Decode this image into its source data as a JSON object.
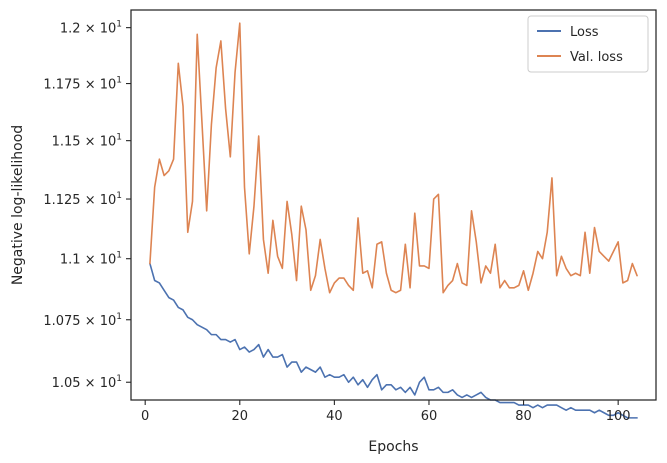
{
  "chart_data": {
    "type": "line",
    "title": "",
    "xlabel": "Epochs",
    "ylabel": "Negative log-likelihood",
    "xlim": [
      -3,
      108
    ],
    "ylim": [
      10.43,
      12.08
    ],
    "yscale": "log",
    "grid": false,
    "legend": "top-right",
    "xticks": [
      0,
      20,
      40,
      60,
      80,
      100
    ],
    "xtick_labels": [
      "0",
      "20",
      "40",
      "60",
      "80",
      "100"
    ],
    "yticks": [
      10.5,
      10.75,
      11.0,
      11.25,
      11.5,
      11.75,
      12.0
    ],
    "ytick_mantissas": [
      "1.05",
      "1.075",
      "1.1",
      "1.125",
      "1.15",
      "1.175",
      "1.2"
    ],
    "ytick_base": "× 10",
    "ytick_exponent": "1",
    "colors": {
      "loss": "#4c72b0",
      "val_loss": "#dd8452",
      "axes": "#262626"
    },
    "series": [
      {
        "name": "Loss",
        "color": "#4c72b0",
        "x": [
          1,
          2,
          3,
          4,
          5,
          6,
          7,
          8,
          9,
          10,
          11,
          12,
          13,
          14,
          15,
          16,
          17,
          18,
          19,
          20,
          21,
          22,
          23,
          24,
          25,
          26,
          27,
          28,
          29,
          30,
          31,
          32,
          33,
          34,
          35,
          36,
          37,
          38,
          39,
          40,
          41,
          42,
          43,
          44,
          45,
          46,
          47,
          48,
          49,
          50,
          51,
          52,
          53,
          54,
          55,
          56,
          57,
          58,
          59,
          60,
          61,
          62,
          63,
          64,
          65,
          66,
          67,
          68,
          69,
          70,
          71,
          72,
          73,
          74,
          75,
          76,
          77,
          78,
          79,
          80,
          81,
          82,
          83,
          84,
          85,
          86,
          87,
          88,
          89,
          90,
          91,
          92,
          93,
          94,
          95,
          96,
          97,
          98,
          99,
          100,
          101,
          102,
          103,
          104
        ],
        "values": [
          10.98,
          10.91,
          10.9,
          10.87,
          10.84,
          10.83,
          10.8,
          10.79,
          10.76,
          10.75,
          10.73,
          10.72,
          10.71,
          10.69,
          10.69,
          10.67,
          10.67,
          10.66,
          10.67,
          10.63,
          10.64,
          10.62,
          10.63,
          10.65,
          10.6,
          10.63,
          10.6,
          10.6,
          10.61,
          10.56,
          10.58,
          10.58,
          10.54,
          10.56,
          10.55,
          10.54,
          10.56,
          10.52,
          10.53,
          10.52,
          10.52,
          10.53,
          10.5,
          10.52,
          10.49,
          10.51,
          10.48,
          10.51,
          10.53,
          10.47,
          10.49,
          10.49,
          10.47,
          10.48,
          10.46,
          10.48,
          10.45,
          10.5,
          10.52,
          10.47,
          10.47,
          10.48,
          10.46,
          10.46,
          10.47,
          10.45,
          10.44,
          10.45,
          10.44,
          10.45,
          10.46,
          10.44,
          10.43,
          10.43,
          10.42,
          10.42,
          10.42,
          10.42,
          10.41,
          10.41,
          10.41,
          10.4,
          10.41,
          10.4,
          10.41,
          10.41,
          10.41,
          10.4,
          10.39,
          10.4,
          10.39,
          10.39,
          10.39,
          10.39,
          10.38,
          10.39,
          10.38,
          10.37,
          10.37,
          10.38,
          10.37,
          10.36,
          10.36,
          10.36
        ]
      },
      {
        "name": "Val. loss",
        "color": "#dd8452",
        "x": [
          1,
          2,
          3,
          4,
          5,
          6,
          7,
          8,
          9,
          10,
          11,
          12,
          13,
          14,
          15,
          16,
          17,
          18,
          19,
          20,
          21,
          22,
          23,
          24,
          25,
          26,
          27,
          28,
          29,
          30,
          31,
          32,
          33,
          34,
          35,
          36,
          37,
          38,
          39,
          40,
          41,
          42,
          43,
          44,
          45,
          46,
          47,
          48,
          49,
          50,
          51,
          52,
          53,
          54,
          55,
          56,
          57,
          58,
          59,
          60,
          61,
          62,
          63,
          64,
          65,
          66,
          67,
          68,
          69,
          70,
          71,
          72,
          73,
          74,
          75,
          76,
          77,
          78,
          79,
          80,
          81,
          82,
          83,
          84,
          85,
          86,
          87,
          88,
          89,
          90,
          91,
          92,
          93,
          94,
          95,
          96,
          97,
          98,
          99,
          100,
          101,
          102,
          103,
          104
        ],
        "values": [
          10.98,
          11.3,
          11.42,
          11.35,
          11.37,
          11.42,
          11.84,
          11.65,
          11.11,
          11.24,
          11.97,
          11.58,
          11.2,
          11.57,
          11.82,
          11.94,
          11.64,
          11.43,
          11.8,
          12.02,
          11.3,
          11.02,
          11.22,
          11.52,
          11.08,
          10.94,
          11.16,
          11.01,
          10.96,
          11.24,
          11.1,
          10.91,
          11.22,
          11.12,
          10.87,
          10.93,
          11.08,
          10.96,
          10.86,
          10.9,
          10.92,
          10.92,
          10.89,
          10.87,
          11.17,
          10.94,
          10.95,
          10.88,
          11.06,
          11.07,
          10.94,
          10.87,
          10.86,
          10.87,
          11.06,
          10.88,
          11.19,
          10.97,
          10.97,
          10.96,
          11.25,
          11.27,
          10.86,
          10.89,
          10.91,
          10.98,
          10.9,
          10.89,
          11.2,
          11.07,
          10.9,
          10.97,
          10.94,
          11.06,
          10.88,
          10.91,
          10.88,
          10.88,
          10.89,
          10.95,
          10.87,
          10.94,
          11.03,
          11.0,
          11.11,
          11.34,
          10.93,
          11.01,
          10.96,
          10.93,
          10.94,
          10.93,
          11.11,
          10.94,
          11.13,
          11.03,
          11.01,
          10.99,
          11.03,
          11.07,
          10.9,
          10.91,
          10.98,
          10.93
        ]
      }
    ]
  }
}
